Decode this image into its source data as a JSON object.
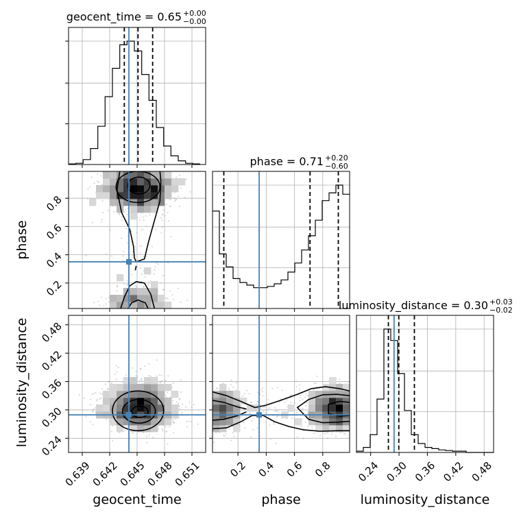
{
  "chart_data": {
    "type": "corner",
    "colors": {
      "truth": "#4682b4",
      "hist": "#000000",
      "grid": "#b0b0b0",
      "samples": "#9a9a9a"
    },
    "grid": true,
    "parameters": [
      {
        "name": "geocent_time",
        "xlabel": "geocent_time",
        "range": [
          0.6375,
          0.6525
        ],
        "ticks": [
          0.639,
          0.642,
          0.645,
          0.648,
          0.651
        ],
        "tick_labels": [
          "0.639",
          "0.642",
          "0.645",
          "0.648",
          "0.651"
        ],
        "title_main": "geocent_time = 0.65",
        "title_sup": "+0.00",
        "title_sub": "−0.00",
        "quantiles": [
          0.6436,
          0.6451,
          0.6467
        ],
        "truth": 0.6441,
        "hist": {
          "edges": [
            0.6375,
            0.6383,
            0.6391,
            0.6399,
            0.6407,
            0.6415,
            0.6423,
            0.6431,
            0.6439,
            0.6447,
            0.6455,
            0.6463,
            0.6471,
            0.6479,
            0.6487,
            0.6495,
            0.6503,
            0.6511,
            0.6519
          ],
          "values": [
            0.005,
            0.01,
            0.04,
            0.13,
            0.31,
            0.55,
            0.78,
            0.97,
            1.0,
            0.92,
            0.73,
            0.52,
            0.3,
            0.15,
            0.07,
            0.03,
            0.01,
            0.005
          ]
        }
      },
      {
        "name": "phase",
        "xlabel": "phase",
        "ylabel": "phase",
        "range": [
          0.02,
          0.99
        ],
        "ticks": [
          0.2,
          0.4,
          0.6,
          0.8
        ],
        "tick_labels": [
          "0.2",
          "0.4",
          "0.6",
          "0.8"
        ],
        "title_main": "phase = 0.71",
        "title_sup": "+0.20",
        "title_sub": "−0.60",
        "quantiles": [
          0.1,
          0.71,
          0.91
        ],
        "truth": 0.35,
        "hist": {
          "edges": [
            0.02,
            0.0685,
            0.117,
            0.1655,
            0.214,
            0.2625,
            0.311,
            0.3595,
            0.408,
            0.4565,
            0.505,
            0.5535,
            0.602,
            0.6505,
            0.699,
            0.7475,
            0.796,
            0.8445,
            0.893,
            0.9415,
            0.99
          ],
          "values": [
            0.75,
            0.42,
            0.32,
            0.23,
            0.2,
            0.18,
            0.16,
            0.16,
            0.17,
            0.19,
            0.22,
            0.28,
            0.35,
            0.45,
            0.56,
            0.68,
            0.83,
            0.89,
            0.95,
            0.88
          ]
        }
      },
      {
        "name": "luminosity_distance",
        "xlabel": "luminosity_distance",
        "ylabel": "luminosity_distance",
        "range": [
          0.21,
          0.5
        ],
        "ticks": [
          0.24,
          0.3,
          0.36,
          0.42,
          0.48
        ],
        "tick_labels": [
          "0.24",
          "0.30",
          "0.36",
          "0.42",
          "0.48"
        ],
        "title_main": "luminosity_distance = 0.30",
        "title_sup": "+0.03",
        "title_sub": "−0.02",
        "quantiles": [
          0.2775,
          0.2995,
          0.3325
        ],
        "truth": 0.2895,
        "hist": {
          "edges": [
            0.21,
            0.2245,
            0.239,
            0.2535,
            0.268,
            0.2825,
            0.297,
            0.3115,
            0.326,
            0.3405,
            0.355,
            0.3695,
            0.384,
            0.3985,
            0.413,
            0.4275,
            0.442,
            0.4565,
            0.471,
            0.4855,
            0.5
          ],
          "values": [
            0.01,
            0.04,
            0.14,
            0.42,
            0.97,
            0.88,
            0.62,
            0.33,
            0.14,
            0.07,
            0.04,
            0.03,
            0.02,
            0.015,
            0.01,
            0.01,
            0.0,
            0.0,
            0.0,
            0.0
          ]
        }
      }
    ]
  }
}
